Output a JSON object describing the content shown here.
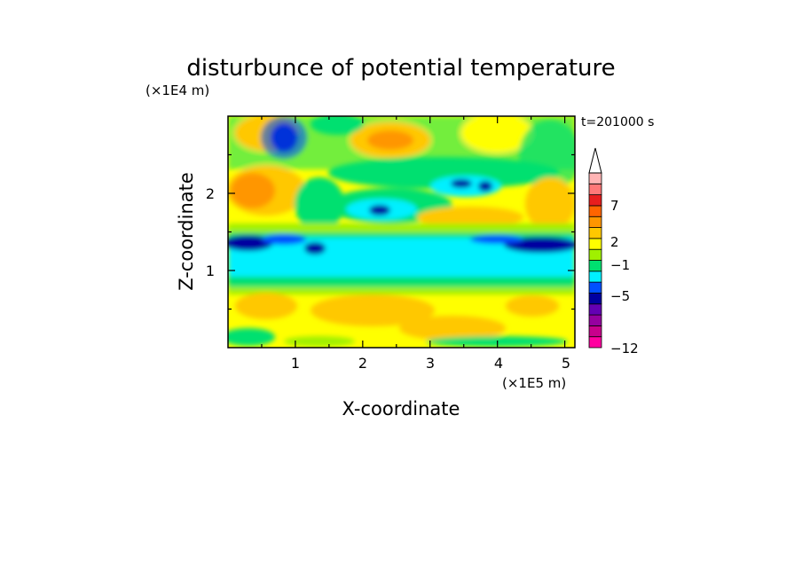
{
  "chart_data": {
    "type": "heatmap",
    "title": "disturbunce of potential temperature",
    "xlabel": "X-coordinate",
    "ylabel": "Z-coordinate",
    "x_unit": "(×1E5 m)",
    "y_unit": "(×1E4 m)",
    "time_label": "t=201000 s",
    "xlim": [
      0,
      5.15
    ],
    "ylim": [
      0,
      3.0
    ],
    "x_ticks": [
      "1",
      "2",
      "3",
      "4",
      "5"
    ],
    "y_ticks": [
      "1",
      "2"
    ],
    "colorbar": {
      "tick_labels": [
        "7",
        "2",
        "−1",
        "−5",
        "−12"
      ],
      "extend": "max",
      "colors": [
        "#ff00a0",
        "#c8008c",
        "#9600a0",
        "#6400b4",
        "#0000a0",
        "#0050ff",
        "#00f0ff",
        "#00e070",
        "#a0f000",
        "#ffff00",
        "#ffc800",
        "#ff9600",
        "#ff6400",
        "#e81e1e",
        "#ff7878",
        "#ffb4b4"
      ]
    },
    "structure_description": "two-dimensional field of the potential temperature disturbance; a broad negative band (about -1 to -5) near z≈1.1–1.45 with the strongest negatives at both lateral edges, weak positive values (about 1–4) near the surface, and alternating positive/negative wave structures aloft with the largest positive values (about 5–7) near x≈2.3–2.6, z≈2.7"
  }
}
